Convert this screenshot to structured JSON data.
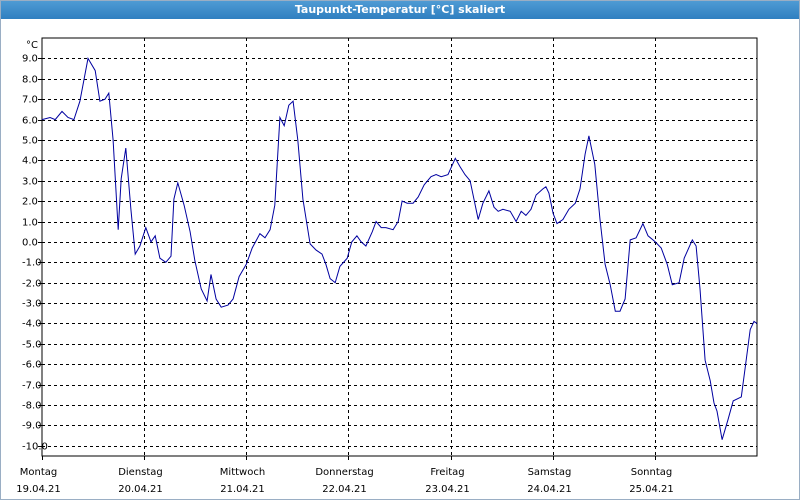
{
  "window_title": "Taupunkt-Temperatur [°C] skaliert",
  "chart_data": {
    "type": "line",
    "y_unit": "°C",
    "color": "#0000a0",
    "grid": true,
    "xlim": [
      0,
      168
    ],
    "ylim": [
      -10.5,
      10
    ],
    "xticks": [
      {
        "value": 0,
        "label": "Montag",
        "date": "19.04.21"
      },
      {
        "value": 24,
        "label": "Dienstag",
        "date": "20.04.21"
      },
      {
        "value": 48,
        "label": "Mittwoch",
        "date": "21.04.21"
      },
      {
        "value": 72,
        "label": "Donnerstag",
        "date": "22.04.21"
      },
      {
        "value": 96,
        "label": "Freitag",
        "date": "23.04.21"
      },
      {
        "value": 120,
        "label": "Samstag",
        "date": "24.04.21"
      },
      {
        "value": 144,
        "label": "Sonntag",
        "date": "25.04.21"
      }
    ],
    "yticks": [
      {
        "value": 9,
        "label": "9.0"
      },
      {
        "value": 8,
        "label": "8.0"
      },
      {
        "value": 7,
        "label": "7.0"
      },
      {
        "value": 6,
        "label": "6.0"
      },
      {
        "value": 5,
        "label": "5.0"
      },
      {
        "value": 4,
        "label": "4.0"
      },
      {
        "value": 3,
        "label": "3.0"
      },
      {
        "value": 2,
        "label": "2.0"
      },
      {
        "value": 1,
        "label": "1.0"
      },
      {
        "value": 0,
        "label": "0.0"
      },
      {
        "value": -1,
        "label": "-1.0"
      },
      {
        "value": -2,
        "label": "-2.0"
      },
      {
        "value": -3,
        "label": "-3.0"
      },
      {
        "value": -4,
        "label": "-4.0"
      },
      {
        "value": -5,
        "label": "-5.0"
      },
      {
        "value": -6,
        "label": "-6.0"
      },
      {
        "value": -7,
        "label": "-7.0"
      },
      {
        "value": -8,
        "label": "-8.0"
      },
      {
        "value": -9,
        "label": "-9.0"
      },
      {
        "value": -10,
        "label": "-10.0"
      }
    ],
    "x": [
      0,
      1.9,
      3.1,
      4.7,
      6.1,
      7.5,
      8.9,
      10.8,
      12.5,
      13.6,
      14.8,
      15.7,
      16.7,
      17.9,
      18.6,
      19.7,
      20.9,
      21.9,
      23.0,
      24.4,
      25.6,
      26.6,
      27.7,
      29.1,
      30.3,
      31.0,
      31.9,
      33.4,
      34.8,
      35.9,
      37.4,
      38.8,
      39.7,
      40.9,
      42.1,
      43.7,
      44.9,
      46.3,
      48.0,
      49.4,
      51.2,
      52.4,
      53.6,
      54.7,
      55.9,
      56.9,
      58.0,
      59.0,
      60.1,
      61.3,
      63.0,
      64.4,
      65.8,
      66.7,
      67.7,
      68.9,
      70.0,
      71.7,
      72.8,
      74.0,
      75.0,
      76.1,
      77.6,
      78.5,
      79.7,
      80.8,
      82.5,
      83.7,
      84.6,
      85.8,
      87.2,
      88.4,
      89.8,
      91.4,
      92.6,
      93.8,
      95.4,
      97.1,
      98.2,
      99.4,
      100.6,
      102.5,
      103.6,
      105.0,
      106.2,
      107.2,
      108.3,
      110.0,
      111.4,
      112.6,
      113.7,
      114.9,
      116.1,
      117.7,
      118.4,
      119.1,
      120.1,
      121.0,
      122.4,
      123.8,
      125.3,
      126.4,
      127.6,
      128.5,
      129.9,
      131.1,
      132.3,
      133.5,
      134.7,
      135.8,
      137.0,
      138.2,
      139.6,
      141.2,
      142.4,
      144.1,
      145.5,
      146.9,
      148.1,
      149.7,
      150.9,
      152.8,
      153.7,
      154.6,
      155.8,
      157.0,
      157.9,
      158.6,
      159.8,
      161.2,
      162.4,
      164.3,
      165.2,
      166.4,
      167.3,
      168.0
    ],
    "values": [
      6.0,
      6.1,
      6.0,
      6.4,
      6.1,
      6.0,
      6.9,
      9.0,
      8.4,
      6.9,
      7.0,
      7.3,
      5.0,
      0.6,
      3.1,
      4.6,
      1.6,
      -0.6,
      -0.2,
      0.7,
      0.0,
      0.3,
      -0.8,
      -1.0,
      -0.7,
      2.1,
      2.9,
      1.8,
      0.5,
      -0.9,
      -2.3,
      -2.9,
      -1.6,
      -2.8,
      -3.2,
      -3.1,
      -2.8,
      -1.7,
      -1.1,
      -0.3,
      0.4,
      0.2,
      0.6,
      1.8,
      6.1,
      5.7,
      6.7,
      6.9,
      5.0,
      2.1,
      -0.1,
      -0.4,
      -0.6,
      -1.1,
      -1.8,
      -2.0,
      -1.2,
      -0.8,
      0.0,
      0.3,
      0.0,
      -0.2,
      0.5,
      1.0,
      0.7,
      0.7,
      0.6,
      1.0,
      2.0,
      1.9,
      1.9,
      2.2,
      2.8,
      3.2,
      3.3,
      3.2,
      3.3,
      4.1,
      3.7,
      3.3,
      3.0,
      1.1,
      1.9,
      2.5,
      1.7,
      1.5,
      1.6,
      1.5,
      1.0,
      1.5,
      1.3,
      1.6,
      2.3,
      2.6,
      2.7,
      2.4,
      1.4,
      0.9,
      1.1,
      1.6,
      1.9,
      2.6,
      4.3,
      5.2,
      3.8,
      1.1,
      -1.1,
      -2.1,
      -3.4,
      -3.4,
      -2.8,
      0.1,
      0.2,
      0.9,
      0.3,
      0.0,
      -0.3,
      -1.1,
      -2.1,
      -2.0,
      -0.8,
      0.1,
      -0.2,
      -2.3,
      -5.8,
      -6.8,
      -7.9,
      -8.3,
      -9.7,
      -8.7,
      -7.8,
      -7.6,
      -6.2,
      -4.3,
      -3.9,
      -4.0
    ]
  }
}
